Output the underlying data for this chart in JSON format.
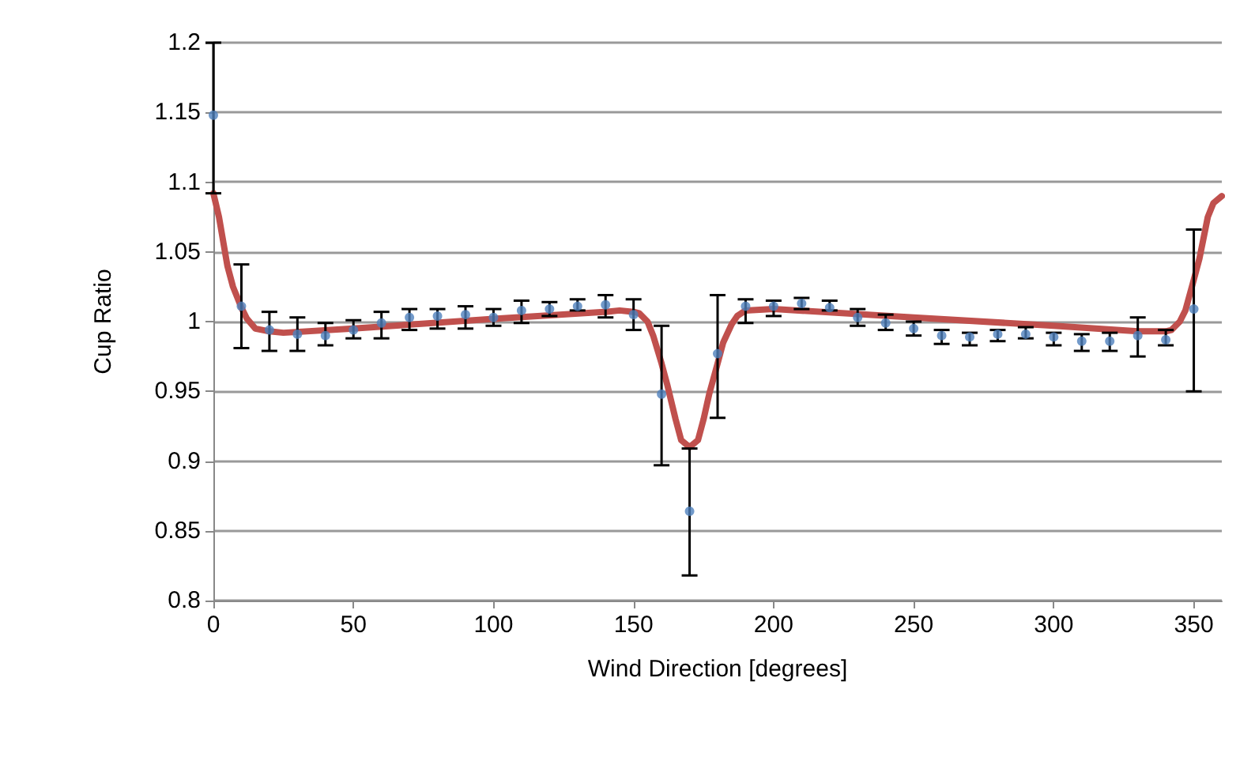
{
  "chart_data": {
    "type": "scatter",
    "xlabel": "Wind Direction [degrees]",
    "ylabel": "Cup Ratio",
    "xlim": [
      0,
      360
    ],
    "xticks": [
      0,
      50,
      100,
      150,
      200,
      250,
      300,
      350
    ],
    "ylim": [
      0.8,
      1.2
    ],
    "yticks": [
      0.8,
      0.85,
      0.9,
      0.95,
      1,
      1.05,
      1.1,
      1.15,
      1.2
    ],
    "grid": "y",
    "series": [
      {
        "color": "#4f81bd",
        "marker": "circle",
        "x": [
          0,
          10,
          20,
          30,
          40,
          50,
          60,
          70,
          80,
          90,
          100,
          110,
          120,
          130,
          140,
          150,
          160,
          170,
          180,
          190,
          200,
          210,
          220,
          230,
          240,
          250,
          260,
          270,
          280,
          290,
          300,
          310,
          320,
          330,
          340,
          350
        ],
        "values": [
          1.148,
          1.011,
          0.994,
          0.991,
          0.99,
          0.994,
          0.999,
          1.003,
          1.004,
          1.005,
          1.003,
          1.008,
          1.009,
          1.011,
          1.012,
          1.005,
          0.948,
          0.864,
          0.977,
          1.011,
          1.011,
          1.013,
          1.01,
          1.003,
          0.999,
          0.995,
          0.99,
          0.989,
          0.991,
          0.991,
          0.989,
          0.986,
          0.986,
          0.99,
          0.987,
          1.009
        ],
        "errors": [
          [
            1.092,
            1.2
          ],
          [
            0.981,
            1.041
          ],
          [
            0.979,
            1.007
          ],
          [
            0.979,
            1.003
          ],
          [
            0.983,
            0.999
          ],
          [
            0.988,
            1.001
          ],
          [
            0.988,
            1.007
          ],
          [
            0.994,
            1.009
          ],
          [
            0.995,
            1.009
          ],
          [
            0.995,
            1.011
          ],
          [
            0.997,
            1.009
          ],
          [
            0.999,
            1.015
          ],
          [
            1.004,
            1.014
          ],
          [
            1.008,
            1.016
          ],
          [
            1.003,
            1.019
          ],
          [
            0.994,
            1.016
          ],
          [
            0.897,
            0.997
          ],
          [
            0.818,
            0.909
          ],
          [
            0.931,
            1.019
          ],
          [
            0.999,
            1.016
          ],
          [
            1.004,
            1.015
          ],
          [
            1.009,
            1.017
          ],
          [
            1.008,
            1.015
          ],
          [
            0.997,
            1.009
          ],
          [
            0.994,
            1.005
          ],
          [
            0.99,
            1.0
          ],
          [
            0.984,
            0.994
          ],
          [
            0.983,
            0.992
          ],
          [
            0.986,
            0.994
          ],
          [
            0.988,
            0.996
          ],
          [
            0.983,
            0.992
          ],
          [
            0.979,
            0.991
          ],
          [
            0.979,
            0.992
          ],
          [
            0.975,
            1.003
          ],
          [
            0.983,
            0.994
          ],
          [
            0.95,
            1.066
          ]
        ]
      },
      {
        "type": "line",
        "color": "#c0504d",
        "marker": "none",
        "line_style": "solid",
        "x": [
          0,
          2,
          5,
          7,
          10,
          12,
          15,
          20,
          25,
          50,
          100,
          140,
          145,
          150,
          152,
          155,
          157,
          160,
          162,
          165,
          167,
          170,
          173,
          175,
          177,
          180,
          182,
          185,
          187,
          190,
          200,
          250,
          300,
          330,
          340,
          342,
          345,
          347,
          350,
          352,
          355,
          357,
          360
        ],
        "values": [
          1.092,
          1.075,
          1.04,
          1.025,
          1.01,
          1.002,
          0.995,
          0.993,
          0.992,
          0.995,
          1.002,
          1.007,
          1.008,
          1.007,
          1.006,
          1.0,
          0.99,
          0.97,
          0.955,
          0.93,
          0.915,
          0.91,
          0.915,
          0.93,
          0.948,
          0.97,
          0.985,
          0.998,
          1.004,
          1.008,
          1.009,
          1.003,
          0.997,
          0.993,
          0.993,
          0.994,
          1.0,
          1.008,
          1.03,
          1.045,
          1.075,
          1.085,
          1.09
        ]
      }
    ]
  }
}
